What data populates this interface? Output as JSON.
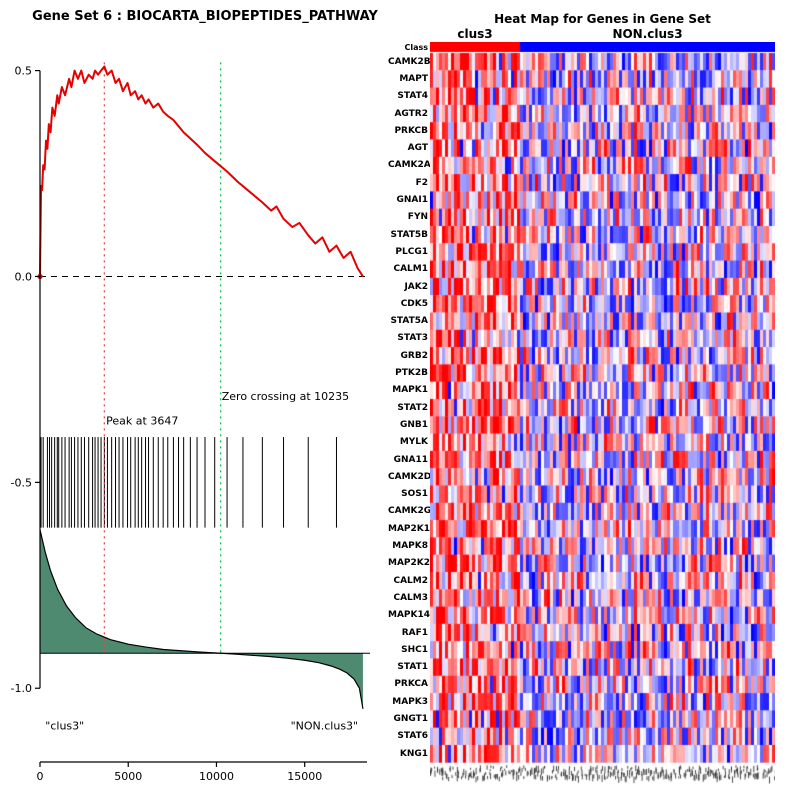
{
  "page": {
    "background": "#FFFFFF"
  },
  "chart_data": [
    {
      "type": "line",
      "panel": "gsea-enrichment",
      "title": "Gene Set 6 : BIOCARTA_BIOPEPTIDES_PATHWAY",
      "xlabel": "",
      "ylabel": "",
      "xlim": [
        0,
        18700
      ],
      "ylim": [
        -1.15,
        0.55
      ],
      "xticks": [
        {
          "label": "0",
          "value": 0
        },
        {
          "label": "5000",
          "value": 5000
        },
        {
          "label": "10000",
          "value": 10000
        },
        {
          "label": "15000",
          "value": 15000
        }
      ],
      "yticks": [
        {
          "label": "0.5",
          "value": 0.5
        },
        {
          "label": "0.0",
          "value": 0.0
        },
        {
          "label": "-0.5",
          "value": -0.5
        },
        {
          "label": "-1.0",
          "value": -1.0
        }
      ],
      "zero_line": {
        "value": 0,
        "color": "#000000",
        "style": "dashed"
      },
      "enrichment_series": {
        "name": "running-enrichment-score",
        "color": "#E60000",
        "x": [
          0,
          60,
          120,
          180,
          260,
          340,
          420,
          500,
          600,
          700,
          830,
          980,
          1060,
          1240,
          1420,
          1650,
          1780,
          1960,
          2150,
          2340,
          2520,
          2760,
          2980,
          3120,
          3290,
          3460,
          3647,
          3820,
          4060,
          4280,
          4480,
          4700,
          4960,
          5140,
          5390,
          5570,
          5760,
          5980,
          6150,
          6420,
          6700,
          6980,
          7240,
          7560,
          7850,
          8140,
          8520,
          8900,
          9350,
          9900,
          10600,
          11200,
          11900,
          12600,
          13100,
          13400,
          13800,
          14300,
          14700,
          15200,
          15600,
          16000,
          16400,
          16800,
          17200,
          17600,
          18000,
          18300
        ],
        "y": [
          0.0,
          0.22,
          0.21,
          0.27,
          0.26,
          0.33,
          0.31,
          0.37,
          0.35,
          0.41,
          0.39,
          0.44,
          0.42,
          0.46,
          0.44,
          0.48,
          0.46,
          0.5,
          0.48,
          0.5,
          0.47,
          0.49,
          0.48,
          0.5,
          0.49,
          0.5,
          0.51,
          0.49,
          0.5,
          0.47,
          0.48,
          0.45,
          0.47,
          0.44,
          0.45,
          0.43,
          0.44,
          0.42,
          0.43,
          0.41,
          0.42,
          0.4,
          0.39,
          0.38,
          0.365,
          0.35,
          0.335,
          0.32,
          0.3,
          0.28,
          0.255,
          0.23,
          0.205,
          0.18,
          0.16,
          0.17,
          0.14,
          0.12,
          0.13,
          0.1,
          0.08,
          0.095,
          0.06,
          0.075,
          0.045,
          0.06,
          0.02,
          0.0
        ]
      },
      "ranked_metric": {
        "name": "ranked-list-metric",
        "line_color": "#000000",
        "fill_color": "#4E8A70",
        "baseline": -0.915,
        "x": [
          0,
          300,
          600,
          1000,
          1500,
          2000,
          2600,
          3200,
          4000,
          5000,
          6000,
          7000,
          8000,
          9000,
          10235,
          11000,
          12000,
          13000,
          14000,
          15000,
          15800,
          16500,
          17000,
          17400,
          17800,
          18100,
          18300
        ],
        "y": [
          -0.615,
          -0.67,
          -0.715,
          -0.76,
          -0.8,
          -0.828,
          -0.853,
          -0.868,
          -0.882,
          -0.893,
          -0.9,
          -0.906,
          -0.909,
          -0.912,
          -0.915,
          -0.917,
          -0.92,
          -0.923,
          -0.927,
          -0.932,
          -0.938,
          -0.946,
          -0.954,
          -0.963,
          -0.978,
          -1.0,
          -1.05
        ]
      },
      "hits": {
        "name": "gene-hit-ticks",
        "color": "#000000",
        "y_top": -0.39,
        "y_bottom": -0.61,
        "x": [
          60,
          180,
          420,
          540,
          660,
          830,
          980,
          1060,
          1240,
          1420,
          1650,
          1780,
          1960,
          2150,
          2340,
          2520,
          2760,
          2980,
          3120,
          3290,
          3460,
          3647,
          3820,
          4060,
          4280,
          4480,
          4700,
          4960,
          5140,
          5390,
          5570,
          5760,
          5980,
          6150,
          6420,
          6700,
          6980,
          7240,
          7560,
          7850,
          8140,
          8520,
          8900,
          9350,
          9900,
          10600,
          11500,
          12600,
          13800,
          15200,
          16800
        ]
      },
      "annotations": [
        {
          "id": "peak",
          "text": "Peak at 3647",
          "x": 3647,
          "label_x": 3750,
          "label_y": -0.36,
          "line_color": "#EE4444",
          "line_from": 0.52,
          "line_to": -0.915,
          "style": "dotted"
        },
        {
          "id": "zero-crossing",
          "text": "Zero crossing at 10235",
          "x": 10235,
          "label_x": 10300,
          "label_y": -0.3,
          "line_color": "#00CC44",
          "line_from": 0.52,
          "line_to": -0.915,
          "style": "dotted"
        }
      ],
      "group_labels": [
        {
          "text": "\"clus3\"",
          "x": 300,
          "y": -1.1
        },
        {
          "text": "\"NON.clus3\"",
          "x": 14200,
          "y": -1.1
        }
      ]
    },
    {
      "type": "heatmap",
      "panel": "gene-heatmap",
      "title": "Heat Map for Genes in Gene Set",
      "class_row_label": "Class",
      "column_groups": [
        {
          "label": "clus3",
          "color": "#FF0000",
          "n_cols": 30
        },
        {
          "label": "NON.clus3",
          "color": "#0000FF",
          "n_cols": 85
        }
      ],
      "rows": [
        "CAMK2B",
        "MAPT",
        "STAT4",
        "AGTR2",
        "PRKCB",
        "AGT",
        "CAMK2A",
        "F2",
        "GNAI1",
        "FYN",
        "STAT5B",
        "PLCG1",
        "CALM1",
        "JAK2",
        "CDK5",
        "STAT5A",
        "STAT3",
        "GRB2",
        "PTK2B",
        "MAPK1",
        "STAT2",
        "GNB1",
        "MYLK",
        "GNA11",
        "CAMK2D",
        "SOS1",
        "CAMK2G",
        "MAP2K1",
        "MAPK8",
        "MAP2K2",
        "CALM2",
        "CALM3",
        "MAPK14",
        "RAF1",
        "SHC1",
        "STAT1",
        "PRKCA",
        "MAPK3",
        "GNGT1",
        "STAT6",
        "KNG1"
      ],
      "palette": {
        "low": "#0000FF",
        "mid": "#FFFFFF",
        "high": "#FF0000"
      },
      "cell_value_range": [
        -1,
        1
      ]
    }
  ]
}
